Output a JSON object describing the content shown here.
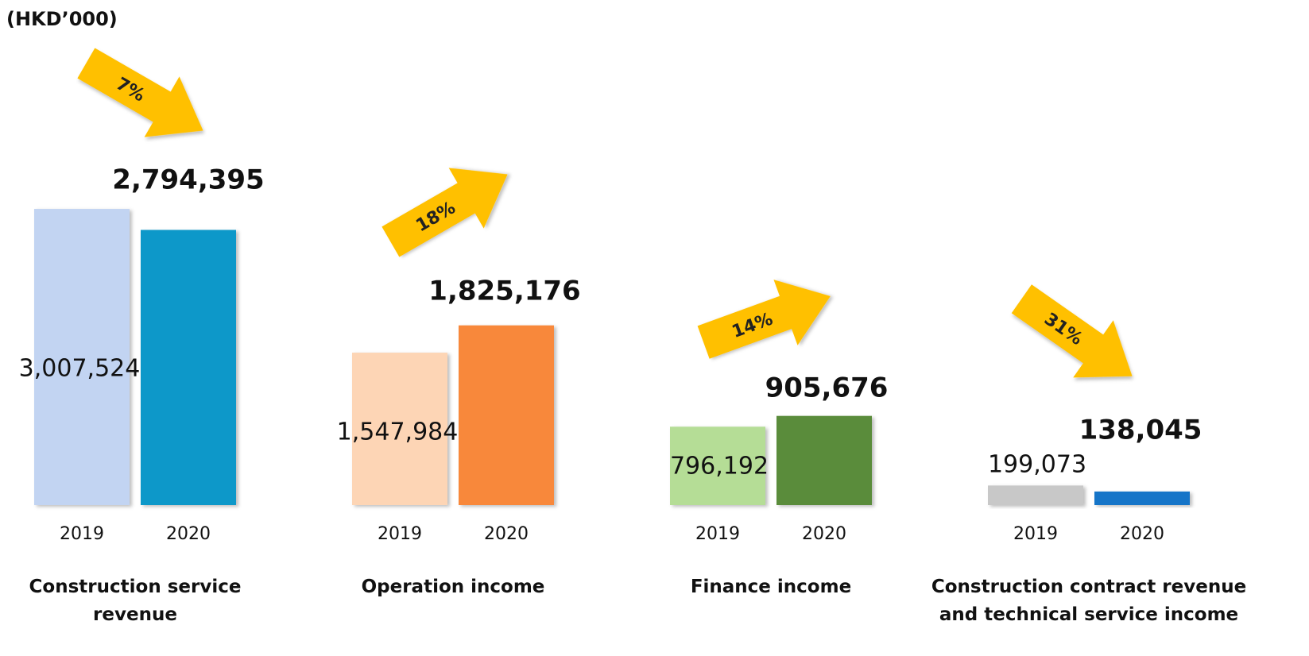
{
  "unit": "(HKD’000)",
  "chart_data": [
    {
      "type": "bar",
      "title": "Construction service revenue",
      "categories": [
        "2019",
        "2020"
      ],
      "values": [
        3007524,
        2794395
      ],
      "value_labels": [
        "3,007,524",
        "2,794,395"
      ],
      "colors": [
        "#c2d4f2",
        "#0798c9"
      ],
      "ylim": [
        0,
        3000000
      ],
      "change": {
        "label": "7%",
        "direction": "down"
      }
    },
    {
      "type": "bar",
      "title": "Operation income",
      "categories": [
        "2019",
        "2020"
      ],
      "values": [
        1547984,
        1825176
      ],
      "value_labels": [
        "1,547,984",
        "1,825,176"
      ],
      "colors": [
        "#fdd5b5",
        "#f8883b"
      ],
      "ylim": [
        0,
        3000000
      ],
      "change": {
        "label": "18%",
        "direction": "up"
      }
    },
    {
      "type": "bar",
      "title": "Finance income",
      "categories": [
        "2019",
        "2020"
      ],
      "values": [
        796192,
        905676
      ],
      "value_labels": [
        "796,192",
        "905,676"
      ],
      "colors": [
        "#b5dd96",
        "#5a8c3a"
      ],
      "ylim": [
        0,
        3000000
      ],
      "change": {
        "label": "14%",
        "direction": "up"
      }
    },
    {
      "type": "bar",
      "title": "Construction contract revenue and technical service income",
      "categories": [
        "2019",
        "2020"
      ],
      "values": [
        199073,
        138045
      ],
      "value_labels": [
        "199,073",
        "138,045"
      ],
      "colors": [
        "#c8c8c8",
        "#1874c8"
      ],
      "ylim": [
        0,
        3000000
      ],
      "change": {
        "label": "31%",
        "direction": "down"
      }
    }
  ]
}
